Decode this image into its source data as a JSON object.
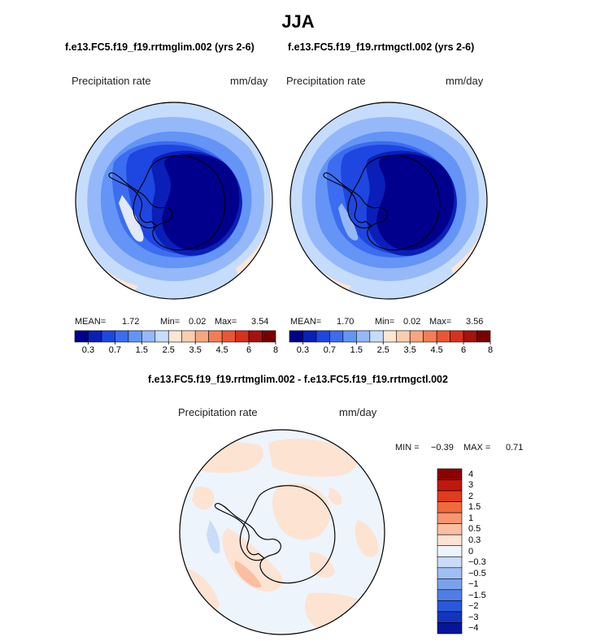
{
  "title": "JJA",
  "panels": [
    {
      "case_title": "f.e13.FC5.f19_f19.rrtmglim.002 (yrs 2-6)",
      "variable": "Precipitation rate",
      "units": "mm/day",
      "mean_label": "MEAN=",
      "mean": "1.72",
      "min_label": "Min=",
      "min": "0.02",
      "max_label": "Max=",
      "max": "3.54"
    },
    {
      "case_title": "f.e13.FC5.f19_f19.rrtmgctl.002 (yrs 2-6)",
      "variable": "Precipitation rate",
      "units": "mm/day",
      "mean_label": "MEAN=",
      "mean": "1.70",
      "min_label": "Min=",
      "min": "0.02",
      "max_label": "Max=",
      "max": "3.56"
    }
  ],
  "colorbar": {
    "colors": [
      "#00008c",
      "#0a1fb8",
      "#1e46e0",
      "#3c6cf0",
      "#6494f5",
      "#94b8fa",
      "#c6dcfc",
      "#fde6d4",
      "#fbcdb0",
      "#f8a67f",
      "#f47d56",
      "#ec5533",
      "#d8301c",
      "#a8110e",
      "#780000"
    ],
    "tick_labels": [
      "0.3",
      "0.7",
      "1.5",
      "2.5",
      "3.5",
      "4.5",
      "6",
      "8"
    ]
  },
  "difference": {
    "title": "f.e13.FC5.f19_f19.rrtmglim.002 - f.e13.FC5.f19_f19.rrtmgctl.002",
    "variable": "Precipitation rate",
    "units": "mm/day",
    "min_label": "MIN =",
    "min": "−0.39",
    "max_label": "MAX =",
    "max": "0.71",
    "colorbar": {
      "colors": [
        "#8c0000",
        "#c0180c",
        "#e03c1e",
        "#f06a3c",
        "#f69670",
        "#fabea0",
        "#fde3d2",
        "#eef4fc",
        "#c9dcf8",
        "#9ebff2",
        "#7aa2ec",
        "#4f7ee6",
        "#2a58dc",
        "#1235c0",
        "#07159a"
      ],
      "labels": [
        "4",
        "3",
        "2",
        "1.5",
        "1",
        "0.5",
        "0.3",
        "0",
        "−0.3",
        "−0.5",
        "−1",
        "−1.5",
        "−2",
        "−3",
        "−4"
      ]
    }
  },
  "chart_data": [
    {
      "type": "heatmap",
      "title": "f.e13.FC5.f19_f19.rrtmglim.002 (yrs 2-6)",
      "variable": "Precipitation rate",
      "units": "mm/day",
      "projection": "south polar stereographic",
      "levels": [
        0.3,
        0.5,
        0.7,
        1,
        1.5,
        2,
        2.5,
        3,
        3.5,
        4,
        4.5,
        5,
        6,
        7,
        8
      ],
      "mean": 1.72,
      "min": 0.02,
      "max": 3.54
    },
    {
      "type": "heatmap",
      "title": "f.e13.FC5.f19_f19.rrtmgctl.002 (yrs 2-6)",
      "variable": "Precipitation rate",
      "units": "mm/day",
      "projection": "south polar stereographic",
      "levels": [
        0.3,
        0.5,
        0.7,
        1,
        1.5,
        2,
        2.5,
        3,
        3.5,
        4,
        4.5,
        5,
        6,
        7,
        8
      ],
      "mean": 1.7,
      "min": 0.02,
      "max": 3.56
    },
    {
      "type": "heatmap",
      "title": "f.e13.FC5.f19_f19.rrtmglim.002 - f.e13.FC5.f19_f19.rrtmgctl.002",
      "variable": "Precipitation rate",
      "units": "mm/day",
      "projection": "south polar stereographic",
      "levels": [
        -4,
        -3,
        -2,
        -1.5,
        -1,
        -0.5,
        -0.3,
        0,
        0.3,
        0.5,
        1,
        1.5,
        2,
        3,
        4
      ],
      "min": -0.39,
      "max": 0.71
    }
  ]
}
